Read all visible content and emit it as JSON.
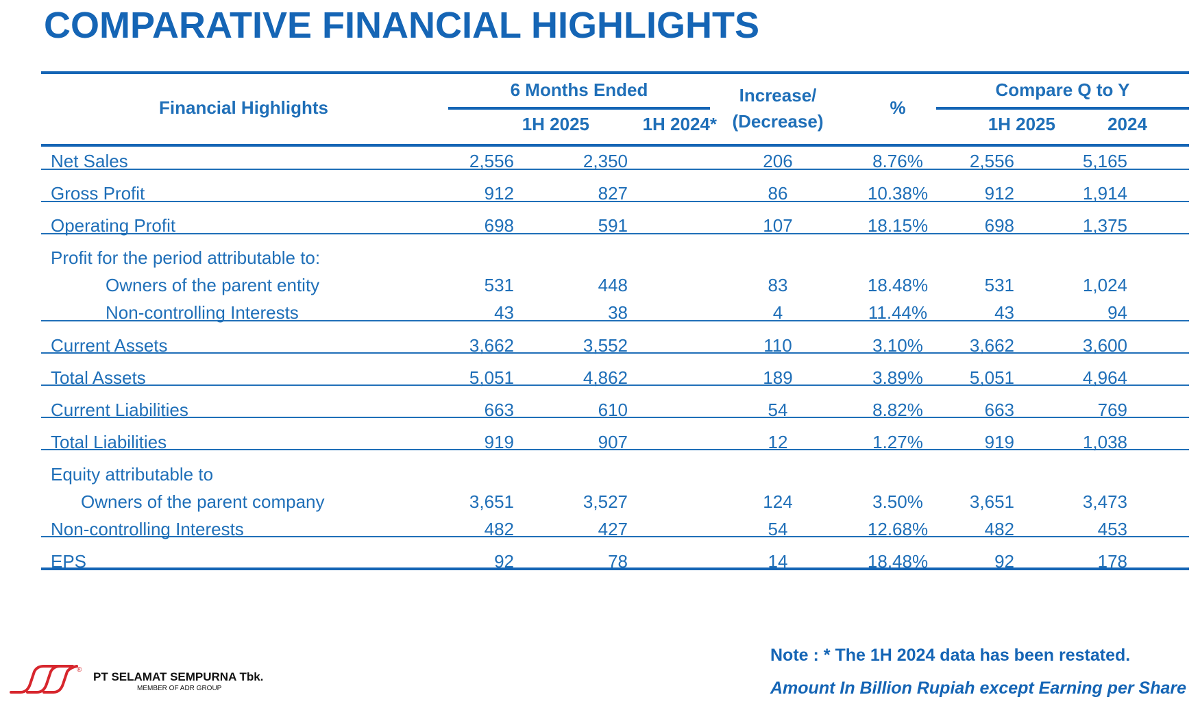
{
  "title": "COMPARATIVE FINANCIAL HIGHLIGHTS",
  "header": {
    "financial_highlights": "Financial Highlights",
    "six_months_ended": "6 Months Ended",
    "col_1h2025": "1H 2025",
    "col_1h2024": "1H 2024*",
    "increase_line1": "Increase/",
    "increase_line2": "(Decrease)",
    "percent": "%",
    "compare_q_to_y": "Compare Q to Y",
    "col_cmp_1h2025": "1H 2025",
    "col_cmp_2024": "2024"
  },
  "rows": [
    {
      "label": "Net Sales",
      "v2025": "2,556",
      "v2024": "2,350",
      "inc": "206",
      "pct": "8.76%",
      "c2025": "2,556",
      "c2024": "5,165"
    },
    {
      "label": "Gross Profit",
      "v2025": "912",
      "v2024": "827",
      "inc": "86",
      "pct": "10.38%",
      "c2025": "912",
      "c2024": "1,914"
    },
    {
      "label": "Operating Profit",
      "v2025": "698",
      "v2024": "591",
      "inc": "107",
      "pct": "18.15%",
      "c2025": "698",
      "c2024": "1,375"
    },
    {
      "label": "Profit for the period attributable to:"
    },
    {
      "label": "Owners of the parent entity",
      "v2025": "531",
      "v2024": "448",
      "inc": "83",
      "pct": "18.48%",
      "c2025": "531",
      "c2024": "1,024"
    },
    {
      "label": "Non-controlling Interests",
      "v2025": "43",
      "v2024": "38",
      "inc": "4",
      "pct": "11.44%",
      "c2025": "43",
      "c2024": "94"
    },
    {
      "label": "Current Assets",
      "v2025": "3,662",
      "v2024": "3,552",
      "inc": "110",
      "pct": "3.10%",
      "c2025": "3,662",
      "c2024": "3,600"
    },
    {
      "label": "Total Assets",
      "v2025": "5,051",
      "v2024": "4,862",
      "inc": "189",
      "pct": "3.89%",
      "c2025": "5,051",
      "c2024": "4,964"
    },
    {
      "label": "Current Liabilities",
      "v2025": "663",
      "v2024": "610",
      "inc": "54",
      "pct": "8.82%",
      "c2025": "663",
      "c2024": "769"
    },
    {
      "label": "Total Liabilities",
      "v2025": "919",
      "v2024": "907",
      "inc": "12",
      "pct": "1.27%",
      "c2025": "919",
      "c2024": "1,038"
    },
    {
      "label": "Equity attributable to"
    },
    {
      "label": "Owners of the parent company",
      "v2025": "3,651",
      "v2024": "3,527",
      "inc": "124",
      "pct": "3.50%",
      "c2025": "3,651",
      "c2024": "3,473"
    },
    {
      "label": "Non-controlling Interests",
      "v2025": "482",
      "v2024": "427",
      "inc": "54",
      "pct": "12.68%",
      "c2025": "482",
      "c2024": "453"
    },
    {
      "label": "EPS",
      "v2025": "92",
      "v2024": "78",
      "inc": "14",
      "pct": "18.48%",
      "c2025": "92",
      "c2024": "178"
    }
  ],
  "notes": {
    "restated": "Note : * The 1H 2024 data has been restated.",
    "amount": "Amount In Billion Rupiah except Earning per Share"
  },
  "company": {
    "name": "PT SELAMAT SEMPURNA Tbk.",
    "member": "MEMBER OF ADR GROUP",
    "registered_mark": "®"
  },
  "colors": {
    "primary_blue": "#1565b5",
    "text_blue": "#1f6fb8",
    "logo_red": "#d7262d"
  }
}
